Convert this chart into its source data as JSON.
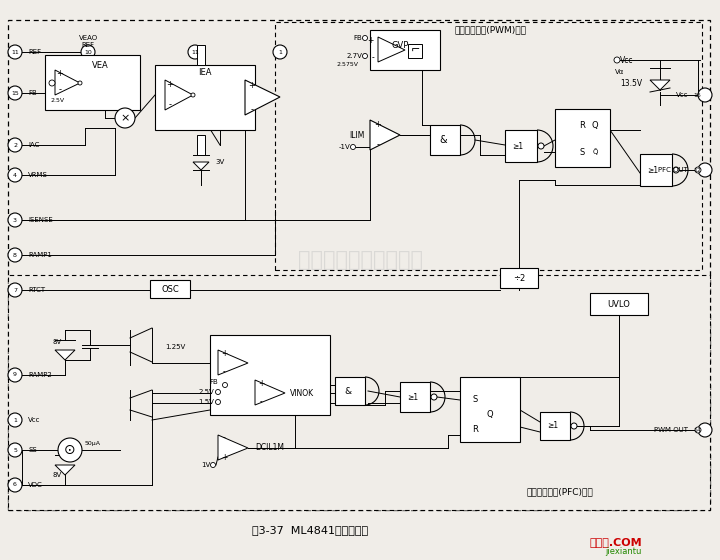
{
  "bg_color": "#f0ede8",
  "fig_width": 7.2,
  "fig_height": 5.6,
  "title_text": "图3-37  ML4841内部结构图",
  "watermark": "杭州将睷科技有限公司",
  "top_label": "脉冲宽度调制(PWM)单元",
  "bottom_label": "功率因数校正(PFC)单元",
  "brand_text": "接线图.COM",
  "brand_sub": "jiexiantu"
}
